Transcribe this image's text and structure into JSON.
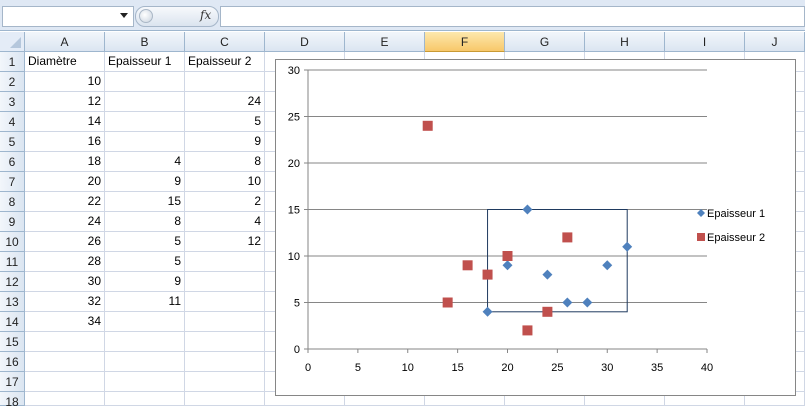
{
  "formula_bar": {
    "name_box": "",
    "fx_label": "fx",
    "formula": ""
  },
  "columns": [
    "A",
    "B",
    "C",
    "D",
    "E",
    "F",
    "G",
    "H",
    "I",
    "J"
  ],
  "selected_column": "F",
  "rows": [
    "1",
    "2",
    "3",
    "4",
    "5",
    "6",
    "7",
    "8",
    "9",
    "10",
    "11",
    "12",
    "13",
    "14",
    "15",
    "16",
    "17",
    "18"
  ],
  "cells": {
    "header": [
      "Diamètre",
      "Epaisseur 1",
      "Epaisseur 2"
    ],
    "diametre": [
      "10",
      "12",
      "14",
      "16",
      "18",
      "20",
      "22",
      "24",
      "26",
      "28",
      "30",
      "32",
      "34"
    ],
    "epaisseur1": [
      "",
      "",
      "",
      "",
      "4",
      "9",
      "15",
      "8",
      "5",
      "5",
      "9",
      "11",
      ""
    ],
    "epaisseur2": [
      "",
      "24",
      "5",
      "9",
      "8",
      "10",
      "2",
      "4",
      "12",
      "",
      "",
      "",
      ""
    ]
  },
  "colors": {
    "series1": "#4f81bd",
    "series2": "#c0504d"
  },
  "chart_data": {
    "type": "scatter",
    "xlim": [
      0,
      40
    ],
    "ylim": [
      0,
      30
    ],
    "x_ticks": [
      "0",
      "5",
      "10",
      "15",
      "20",
      "25",
      "30",
      "35",
      "40"
    ],
    "y_ticks": [
      "0",
      "5",
      "10",
      "15",
      "20",
      "25",
      "30"
    ],
    "grid": "horizontal",
    "legend_position": "right",
    "series": [
      {
        "name": "Epaisseur 1",
        "marker": "diamond",
        "color": "#4f81bd",
        "x": [
          18,
          20,
          22,
          24,
          26,
          28,
          30,
          32
        ],
        "y": [
          4,
          9,
          15,
          8,
          5,
          5,
          9,
          11
        ]
      },
      {
        "name": "Epaisseur 2",
        "marker": "square",
        "color": "#c0504d",
        "x": [
          12,
          14,
          16,
          18,
          20,
          22,
          24,
          26
        ],
        "y": [
          24,
          5,
          9,
          8,
          10,
          2,
          4,
          12
        ]
      }
    ],
    "annotation_rect": {
      "x0": 18,
      "x1": 32,
      "y0": 4,
      "y1": 15
    }
  }
}
